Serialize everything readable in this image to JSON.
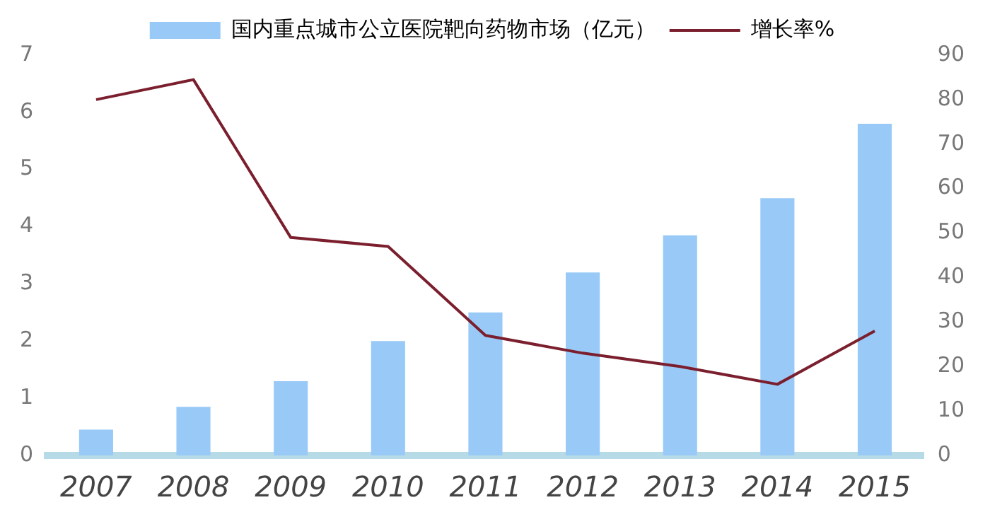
{
  "chart_data": {
    "type": "bar",
    "categories": [
      "2007",
      "2008",
      "2009",
      "2010",
      "2011",
      "2012",
      "2013",
      "2014",
      "2015"
    ],
    "series": [
      {
        "name": "国内重点城市公立医院靶向药物市场（亿元）",
        "color": "#99caf7",
        "values": [
          0.45,
          0.85,
          1.3,
          2.0,
          2.5,
          3.2,
          3.85,
          4.5,
          5.8
        ]
      },
      {
        "name": "增长率%",
        "type": "line",
        "axis": "y2",
        "color": "#7b1f2e",
        "values": [
          80,
          84.5,
          49,
          47,
          27,
          23,
          20,
          16,
          28
        ]
      }
    ],
    "ylim": [
      0,
      7
    ],
    "yticks": [
      0,
      1,
      2,
      3,
      4,
      5,
      6,
      7
    ],
    "y2lim": [
      0,
      90
    ],
    "y2ticks": [
      0,
      10,
      20,
      30,
      40,
      50,
      60,
      70,
      80,
      90
    ],
    "grid": false,
    "legend": "top",
    "marker": "none"
  }
}
